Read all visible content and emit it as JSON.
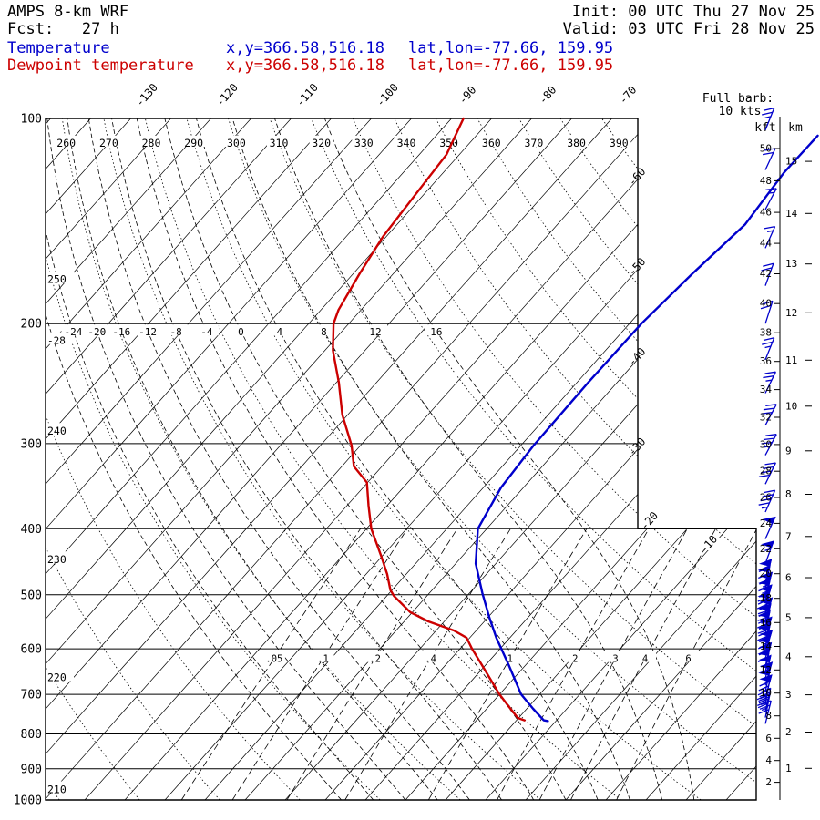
{
  "header": {
    "model": "AMPS 8-km WRF",
    "fcst": "Fcst:   27 h",
    "init": "Init: 00 UTC Thu 27 Nov 25",
    "valid": "Valid: 03 UTC Fri 28 Nov 25",
    "temp_label": "Temperature",
    "temp_xy": "x,y=366.58,516.18",
    "temp_latlon": "lat,lon=-77.66, 159.95",
    "dewp_label": "Dewpoint temperature",
    "dewp_xy": "x,y=366.58,516.18",
    "dewp_latlon": "lat,lon=-77.66, 159.95"
  },
  "annotations": {
    "full_barb_1": "Full barb:",
    "full_barb_2": "10 kts",
    "kft": "kft",
    "km": "km"
  },
  "colors": {
    "temperature": "#0000cc",
    "dewpoint": "#cc0000",
    "wind_barbs": "#0000cc",
    "grid": "#000000",
    "background": "#ffffff"
  },
  "chart_data": {
    "type": "skewt-logp",
    "title": "AMPS 8-km WRF sounding",
    "pressure_range_hpa": [
      100,
      1000
    ],
    "skew_deg": 45,
    "pressure_axis_hpa": [
      100,
      200,
      300,
      400,
      500,
      600,
      700,
      800,
      900,
      1000
    ],
    "isotherm_step_c": 5,
    "isotherm_labels_top_c": [
      -130,
      -120,
      -110,
      -100,
      -90,
      -80,
      -70
    ],
    "isotherm_labels_right_c": [
      -60,
      -50,
      -40,
      -30,
      -20,
      -10
    ],
    "dry_adiabat_labels_top_k": [
      260,
      270,
      280,
      290,
      300,
      310,
      320,
      330,
      340,
      350,
      360,
      370,
      380,
      390
    ],
    "dry_adiabat_labels_left_k": [
      250,
      240,
      230,
      220,
      210
    ],
    "moist_adiabat_labels_c": [
      -28,
      -24,
      -20,
      -16,
      -12,
      -8,
      -4,
      0,
      4,
      8,
      12,
      16
    ],
    "mixing_ratio_gkg": [
      0.05,
      0.1,
      0.2,
      0.4,
      1,
      2,
      3,
      4,
      6
    ],
    "mixing_ratio_labels": [
      ".05",
      ".1",
      ".2",
      ".4",
      "1",
      "2",
      "3",
      "4",
      "6"
    ],
    "height_axis_kft": [
      50,
      48,
      46,
      44,
      42,
      40,
      38,
      36,
      34,
      32,
      30,
      28,
      26,
      24,
      22,
      20,
      18,
      16,
      14,
      12,
      10,
      8,
      6,
      4,
      2
    ],
    "height_axis_km": [
      15,
      14,
      13,
      12,
      11,
      10,
      9,
      8,
      7,
      6,
      5,
      4,
      3,
      2,
      1
    ],
    "temperature_profile": [
      [
        106,
        -42.4
      ],
      [
        120,
        -42.5
      ],
      [
        143,
        -41.6
      ],
      [
        169,
        -42.7
      ],
      [
        200,
        -43.5
      ],
      [
        244,
        -43.6
      ],
      [
        302,
        -43.4
      ],
      [
        348,
        -42.8
      ],
      [
        400,
        -41.1
      ],
      [
        450,
        -37.5
      ],
      [
        497,
        -33.4
      ],
      [
        540,
        -29.8
      ],
      [
        578,
        -26.7
      ],
      [
        634,
        -22.1
      ],
      [
        700,
        -17.3
      ],
      [
        735,
        -14.2
      ],
      [
        764,
        -11.6
      ],
      [
        766,
        -11.0
      ]
    ],
    "dewpoint_profile": [
      [
        100,
        -88.5
      ],
      [
        113,
        -86.6
      ],
      [
        130,
        -86.0
      ],
      [
        149,
        -85.4
      ],
      [
        169,
        -84.2
      ],
      [
        191,
        -82.8
      ],
      [
        200,
        -81.9
      ],
      [
        219,
        -79.0
      ],
      [
        244,
        -74.7
      ],
      [
        272,
        -70.7
      ],
      [
        302,
        -66.1
      ],
      [
        324,
        -63.5
      ],
      [
        342,
        -60.1
      ],
      [
        370,
        -57.3
      ],
      [
        400,
        -54.4
      ],
      [
        438,
        -50.2
      ],
      [
        466,
        -47.4
      ],
      [
        492,
        -45.2
      ],
      [
        502,
        -44.1
      ],
      [
        530,
        -40.3
      ],
      [
        547,
        -37.0
      ],
      [
        564,
        -32.8
      ],
      [
        578,
        -30.4
      ],
      [
        600,
        -28.5
      ],
      [
        630,
        -25.8
      ],
      [
        664,
        -22.9
      ],
      [
        700,
        -20.0
      ],
      [
        728,
        -17.6
      ],
      [
        758,
        -15.1
      ],
      [
        764,
        -14.0
      ]
    ],
    "wind_barbs": [
      [
        104,
        25,
        22
      ],
      [
        119,
        20,
        25
      ],
      [
        136,
        15,
        28
      ],
      [
        155,
        15,
        24
      ],
      [
        176,
        20,
        20
      ],
      [
        200,
        20,
        18
      ],
      [
        226,
        25,
        22
      ],
      [
        253,
        25,
        26
      ],
      [
        282,
        30,
        28
      ],
      [
        312,
        35,
        28
      ],
      [
        344,
        40,
        26
      ],
      [
        378,
        45,
        24
      ],
      [
        414,
        50,
        24
      ],
      [
        450,
        55,
        20
      ],
      [
        480,
        60,
        14
      ],
      [
        490,
        60,
        11
      ],
      [
        501,
        65,
        16
      ],
      [
        512,
        65,
        12
      ],
      [
        523,
        70,
        15
      ],
      [
        535,
        70,
        10
      ],
      [
        546,
        70,
        16
      ],
      [
        558,
        75,
        13
      ],
      [
        571,
        75,
        11
      ],
      [
        583,
        70,
        15
      ],
      [
        596,
        70,
        12
      ],
      [
        609,
        65,
        16
      ],
      [
        622,
        65,
        11
      ],
      [
        636,
        60,
        14
      ],
      [
        650,
        60,
        10
      ],
      [
        664,
        55,
        13
      ],
      [
        679,
        55,
        16
      ],
      [
        694,
        50,
        12
      ],
      [
        709,
        50,
        15
      ],
      [
        725,
        45,
        10
      ],
      [
        741,
        40,
        13
      ],
      [
        757,
        35,
        11
      ],
      [
        773,
        30,
        14
      ]
    ]
  }
}
